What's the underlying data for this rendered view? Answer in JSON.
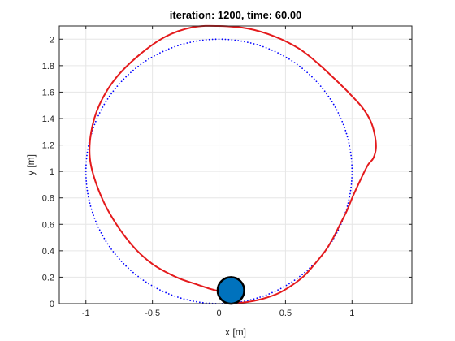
{
  "chart_data": {
    "type": "line",
    "title": "iteration: 1200, time: 60.00",
    "xlabel": "x [m]",
    "ylabel": "y [m]",
    "xlim": [
      -1.2,
      1.45
    ],
    "ylim": [
      0,
      2.1
    ],
    "xticks": [
      -1,
      -0.5,
      0,
      0.5,
      1
    ],
    "xtick_labels": [
      "-1",
      "-0.5",
      "0",
      "0.5",
      "1"
    ],
    "yticks": [
      0,
      0.2,
      0.4,
      0.6,
      0.8,
      1,
      1.2,
      1.4,
      1.6,
      1.8,
      2
    ],
    "ytick_labels": [
      "0",
      "0.2",
      "0.4",
      "0.6",
      "0.8",
      "1",
      "1.2",
      "1.4",
      "1.6",
      "1.8",
      "2"
    ],
    "grid": true,
    "series": [
      {
        "role": "reference",
        "style": "dotted",
        "color": "#0000ff",
        "shape": "circle",
        "center": [
          0,
          1
        ],
        "radius": 1
      },
      {
        "role": "trajectory",
        "style": "solid",
        "color": "#e41a1c",
        "x": [
          0.08,
          0.02,
          -0.06,
          -0.18,
          -0.32,
          -0.5,
          -0.66,
          -0.82,
          -0.92,
          -0.97,
          -0.96,
          -0.9,
          -0.78,
          -0.6,
          -0.4,
          -0.2,
          0,
          0.22,
          0.42,
          0.6,
          0.74,
          0.88,
          0.99,
          1.08,
          1.14,
          1.17,
          1.18,
          1.16,
          1.12,
          1.07,
          1.01,
          0.96,
          0.91,
          0.86,
          0.8,
          0.72,
          0.64,
          0.55,
          0.45,
          0.34,
          0.23,
          0.14,
          0.08
        ],
        "y": [
          0.08,
          0.09,
          0.11,
          0.15,
          0.2,
          0.3,
          0.45,
          0.68,
          0.9,
          1.1,
          1.3,
          1.5,
          1.7,
          1.88,
          2.02,
          2.09,
          2.1,
          2.08,
          2.02,
          1.93,
          1.82,
          1.69,
          1.58,
          1.48,
          1.38,
          1.28,
          1.18,
          1.1,
          1.05,
          0.95,
          0.82,
          0.7,
          0.6,
          0.5,
          0.4,
          0.3,
          0.21,
          0.14,
          0.08,
          0.04,
          0.015,
          0.005,
          0.0
        ]
      }
    ],
    "robot": {
      "x": 0.09,
      "y": 0.1,
      "radius": 0.1,
      "fill": "#0072bd",
      "stroke": "#000000"
    }
  }
}
